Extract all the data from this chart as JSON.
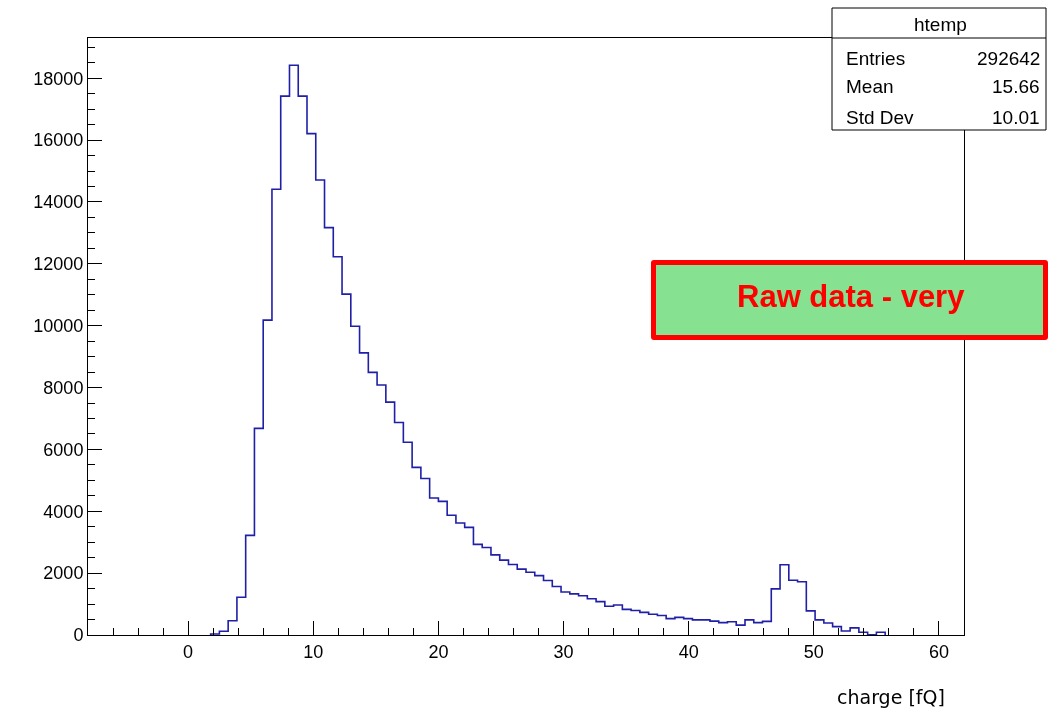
{
  "chart_data": {
    "type": "histogram",
    "xlabel": "charge [fQ]",
    "bins": [
      1.8,
      2.5,
      3.2,
      3.9,
      4.6,
      5.3,
      6,
      6.7,
      7.4,
      8.1,
      8.8,
      9.5,
      10.2,
      10.9,
      11.6,
      12.3,
      13,
      13.7,
      14.4,
      15.1,
      15.8,
      16.5,
      17.2,
      17.9,
      18.6,
      19.3,
      20,
      20.7,
      21.4,
      22.1,
      22.8,
      23.5,
      24.2,
      24.9,
      25.6,
      26.3,
      27,
      27.7,
      28.4,
      29.1,
      29.8,
      30.5,
      31.2,
      31.9,
      32.6,
      33.3,
      34,
      34.7,
      35.4,
      36.1,
      36.8,
      37.5,
      38.2,
      38.9,
      39.6,
      40.3,
      41,
      41.7,
      42.4,
      43.1,
      43.8,
      44.5,
      45.2,
      45.9,
      46.6,
      47.3,
      48,
      48.7,
      49.4,
      50.1,
      50.8,
      51.5,
      52.2,
      52.9,
      53.6,
      54.3,
      55,
      55.7
    ],
    "values": [
      30,
      120,
      460,
      1220,
      3220,
      6680,
      10180,
      14410,
      17420,
      18420,
      17420,
      16210,
      14710,
      13170,
      12230,
      11020,
      9980,
      9120,
      8490,
      8080,
      7530,
      6870,
      6230,
      5420,
      5060,
      4430,
      4320,
      3870,
      3620,
      3480,
      2930,
      2830,
      2590,
      2420,
      2280,
      2130,
      2030,
      1920,
      1760,
      1570,
      1390,
      1330,
      1270,
      1170,
      1080,
      930,
      970,
      830,
      790,
      730,
      670,
      630,
      530,
      570,
      530,
      490,
      490,
      450,
      400,
      430,
      320,
      490,
      400,
      440,
      1490,
      2270,
      1770,
      1720,
      780,
      490,
      390,
      270,
      130,
      230,
      90,
      10,
      90
    ],
    "color": "#1f1fa8",
    "xlim": [
      -8,
      62
    ],
    "xticks": [
      0,
      10,
      20,
      30,
      40,
      50,
      60
    ],
    "ylim": [
      0,
      19300
    ],
    "yticks": [
      0,
      2000,
      4000,
      6000,
      8000,
      10000,
      12000,
      14000,
      16000,
      18000
    ],
    "grid": false,
    "annotations": [
      "htemp",
      "Entries",
      "292642",
      "Mean",
      "15.66",
      "Std Dev",
      "10.01",
      "Raw data - very"
    ]
  }
}
